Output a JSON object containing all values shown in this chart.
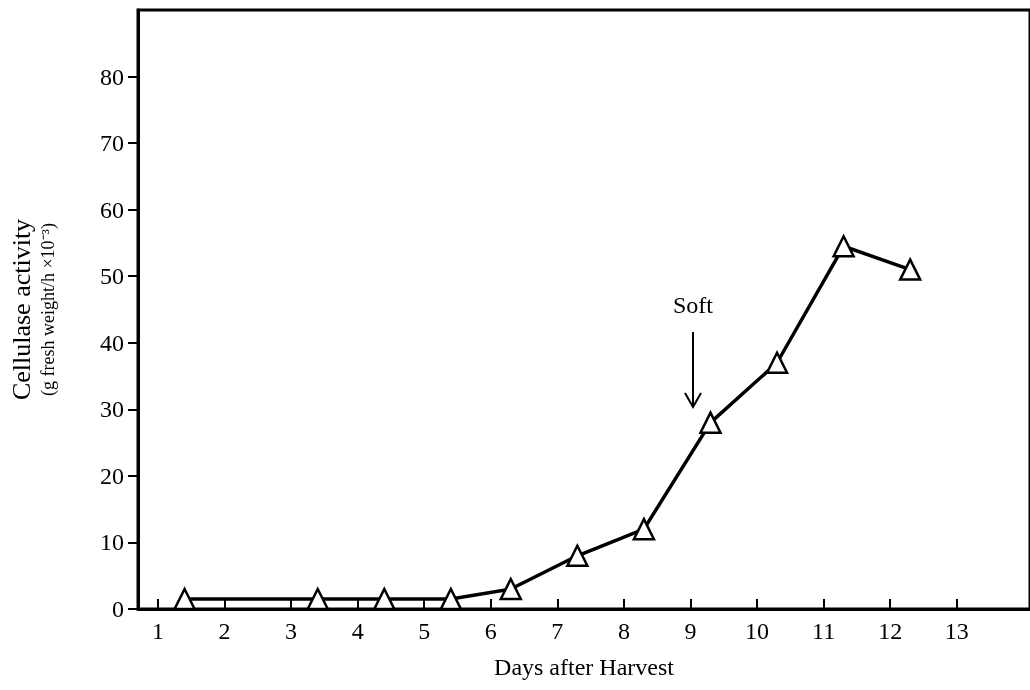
{
  "chart_data": {
    "type": "line",
    "xlabel": "Days after Harvest",
    "ylabel": "Cellulase activity\n(g fresh weight/h ×10⁻³)",
    "x": [
      1.4,
      3.4,
      4.4,
      5.4,
      6.3,
      7.3,
      8.3,
      9.3,
      10.3,
      11.3,
      12.3
    ],
    "series": [
      {
        "color": "#000000",
        "values": [
          1.5,
          1.5,
          1.5,
          1.5,
          3,
          8,
          12,
          28,
          37,
          54.5,
          51
        ]
      }
    ],
    "xlim": [
      0.7,
      14.1
    ],
    "xticks": [
      1,
      2,
      3,
      4,
      5,
      6,
      7,
      8,
      9,
      10,
      11,
      12,
      13
    ],
    "ylim": [
      0,
      90
    ],
    "yticks": [
      0,
      10,
      20,
      30,
      40,
      50,
      60,
      70,
      80
    ],
    "annotations": [
      "Soft"
    ],
    "marker": "triangle",
    "line_style": "solid",
    "grid": false
  }
}
